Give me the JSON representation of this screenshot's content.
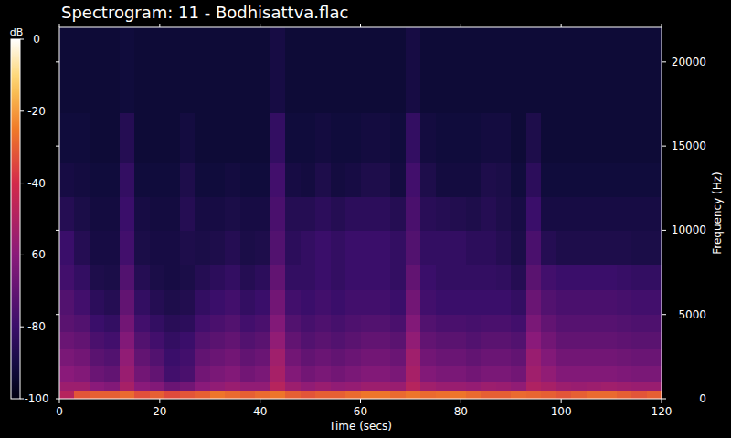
{
  "chart_data": {
    "type": "heatmap",
    "title": "Spectrogram: 11 - Bodhisattva.flac",
    "x_label": "Time (secs)",
    "y_label": "Frequency (Hz)",
    "colorbar_label": "dB",
    "xlim": [
      0,
      120
    ],
    "xticks": [
      0,
      20,
      40,
      60,
      80,
      100,
      120
    ],
    "ylim": [
      0,
      22050
    ],
    "yticks": [
      0,
      5000,
      10000,
      15000,
      20000
    ],
    "zlim": [
      -100,
      0
    ],
    "zticks": [
      0,
      -20,
      -40,
      -60,
      -80,
      -100
    ],
    "x_edges": [
      0,
      3,
      6,
      9,
      12,
      15,
      18,
      21,
      24,
      27,
      30,
      33,
      36,
      39,
      42,
      45,
      48,
      51,
      54,
      57,
      60,
      63,
      66,
      69,
      72,
      75,
      78,
      81,
      84,
      87,
      90,
      93,
      96,
      99,
      102,
      105,
      108,
      111,
      114,
      117,
      120
    ],
    "y_edges": [
      0,
      500,
      1000,
      2000,
      3000,
      4000,
      5000,
      6500,
      8000,
      10000,
      12000,
      14000,
      17000,
      22050
    ],
    "cells": [
      [
        -48,
        -32,
        -30,
        -30,
        -28,
        -33,
        -30,
        -34,
        -32,
        -30,
        -26,
        -28,
        -30,
        -28,
        -26,
        -30,
        -32,
        -30,
        -30,
        -28,
        -26,
        -26,
        -28,
        -26,
        -28,
        -27,
        -26,
        -28,
        -30,
        -30,
        -28,
        -29,
        -30,
        -32,
        -30,
        -28,
        -28,
        -30,
        -32,
        -30
      ],
      [
        -55,
        -55,
        -60,
        -62,
        -52,
        -60,
        -62,
        -68,
        -66,
        -60,
        -58,
        -56,
        -58,
        -58,
        -48,
        -55,
        -58,
        -56,
        -58,
        -57,
        -55,
        -55,
        -56,
        -48,
        -54,
        -56,
        -56,
        -57,
        -55,
        -56,
        -58,
        -50,
        -52,
        -55,
        -56,
        -55,
        -54,
        -55,
        -56,
        -56
      ],
      [
        -60,
        -62,
        -68,
        -70,
        -56,
        -66,
        -70,
        -78,
        -76,
        -66,
        -64,
        -62,
        -66,
        -64,
        -52,
        -62,
        -66,
        -64,
        -66,
        -64,
        -62,
        -62,
        -64,
        -52,
        -62,
        -64,
        -64,
        -66,
        -64,
        -64,
        -66,
        -54,
        -58,
        -62,
        -62,
        -62,
        -62,
        -63,
        -64,
        -64
      ],
      [
        -64,
        -66,
        -72,
        -74,
        -58,
        -70,
        -74,
        -80,
        -78,
        -70,
        -68,
        -66,
        -70,
        -68,
        -54,
        -66,
        -70,
        -68,
        -70,
        -68,
        -66,
        -66,
        -68,
        -54,
        -66,
        -68,
        -68,
        -70,
        -68,
        -68,
        -70,
        -56,
        -62,
        -66,
        -66,
        -66,
        -66,
        -67,
        -68,
        -68
      ],
      [
        -68,
        -70,
        -76,
        -78,
        -62,
        -74,
        -78,
        -82,
        -80,
        -74,
        -72,
        -70,
        -74,
        -72,
        -58,
        -70,
        -74,
        -72,
        -74,
        -72,
        -70,
        -70,
        -72,
        -58,
        -70,
        -72,
        -72,
        -74,
        -72,
        -72,
        -74,
        -60,
        -66,
        -70,
        -70,
        -70,
        -70,
        -71,
        -72,
        -72
      ],
      [
        -72,
        -74,
        -80,
        -82,
        -66,
        -78,
        -82,
        -85,
        -84,
        -78,
        -76,
        -74,
        -78,
        -76,
        -62,
        -74,
        -77,
        -75,
        -77,
        -75,
        -74,
        -74,
        -76,
        -62,
        -74,
        -76,
        -76,
        -77,
        -76,
        -76,
        -78,
        -64,
        -70,
        -73,
        -73,
        -73,
        -73,
        -74,
        -75,
        -75
      ],
      [
        -74,
        -78,
        -84,
        -86,
        -70,
        -82,
        -86,
        -88,
        -87,
        -82,
        -80,
        -78,
        -82,
        -80,
        -66,
        -78,
        -80,
        -78,
        -80,
        -78,
        -78,
        -78,
        -80,
        -66,
        -78,
        -80,
        -80,
        -80,
        -80,
        -80,
        -82,
        -68,
        -74,
        -76,
        -76,
        -76,
        -76,
        -77,
        -78,
        -78
      ],
      [
        -78,
        -82,
        -88,
        -89,
        -74,
        -86,
        -89,
        -90,
        -89,
        -86,
        -84,
        -82,
        -86,
        -84,
        -70,
        -82,
        -82,
        -80,
        -82,
        -80,
        -80,
        -80,
        -82,
        -70,
        -80,
        -82,
        -82,
        -82,
        -82,
        -83,
        -86,
        -72,
        -78,
        -80,
        -80,
        -80,
        -80,
        -81,
        -82,
        -82
      ],
      [
        -80,
        -86,
        -90,
        -90,
        -78,
        -89,
        -90,
        -90,
        -88,
        -89,
        -88,
        -86,
        -89,
        -88,
        -74,
        -84,
        -82,
        -80,
        -82,
        -80,
        -80,
        -80,
        -82,
        -74,
        -82,
        -82,
        -82,
        -84,
        -84,
        -86,
        -89,
        -76,
        -86,
        -88,
        -88,
        -88,
        -88,
        -88,
        -89,
        -89
      ],
      [
        -86,
        -89,
        -91,
        -91,
        -80,
        -90,
        -91,
        -91,
        -86,
        -90,
        -90,
        -89,
        -90,
        -90,
        -76,
        -86,
        -86,
        -84,
        -86,
        -84,
        -84,
        -84,
        -86,
        -76,
        -85,
        -86,
        -87,
        -88,
        -86,
        -88,
        -90,
        -80,
        -90,
        -90,
        -90,
        -90,
        -90,
        -90,
        -90,
        -90
      ],
      [
        -90,
        -91,
        -92,
        -92,
        -82,
        -92,
        -92,
        -92,
        -88,
        -92,
        -92,
        -91,
        -92,
        -92,
        -78,
        -90,
        -91,
        -88,
        -91,
        -90,
        -88,
        -88,
        -91,
        -78,
        -88,
        -91,
        -91,
        -91,
        -88,
        -89,
        -92,
        -84,
        -92,
        -92,
        -92,
        -92,
        -92,
        -92,
        -92,
        -92
      ],
      [
        -92,
        -92,
        -93,
        -93,
        -86,
        -93,
        -93,
        -93,
        -91,
        -93,
        -93,
        -93,
        -93,
        -93,
        -82,
        -92,
        -92,
        -91,
        -92,
        -92,
        -91,
        -91,
        -92,
        -82,
        -91,
        -92,
        -92,
        -92,
        -91,
        -91,
        -93,
        -88,
        -93,
        -93,
        -93,
        -93,
        -93,
        -93,
        -93,
        -93
      ],
      [
        -93,
        -93,
        -93,
        -93,
        -92,
        -93,
        -93,
        -93,
        -93,
        -93,
        -93,
        -93,
        -93,
        -93,
        -90,
        -93,
        -93,
        -93,
        -93,
        -93,
        -93,
        -93,
        -93,
        -90,
        -93,
        -93,
        -93,
        -93,
        -93,
        -93,
        -93,
        -93,
        -93,
        -93,
        -93,
        -93,
        -93,
        -93,
        -93,
        -93
      ]
    ]
  }
}
